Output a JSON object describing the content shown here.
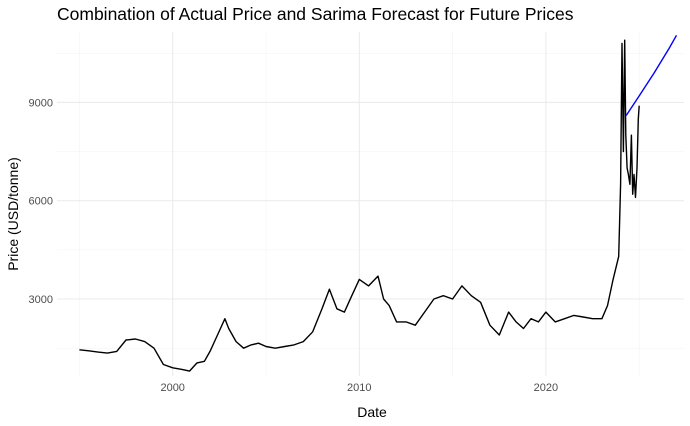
{
  "chart_data": {
    "type": "line",
    "title": "Combination of Actual Price and Sarima Forecast for Future Prices",
    "xlabel": "Date",
    "ylabel": "Price (USD/tonne)",
    "xlim": [
      1993.8,
      2027.4
    ],
    "ylim": [
      650,
      11150
    ],
    "x_ticks": [
      2000,
      2010,
      2020
    ],
    "x_tick_labels": [
      "2000",
      "2010",
      "2020"
    ],
    "y_ticks": [
      3000,
      6000,
      9000
    ],
    "y_tick_labels": [
      "3000",
      "6000",
      "9000"
    ],
    "grid": true,
    "legend": "none",
    "series": [
      {
        "color": "#000000",
        "x": [
          1995.0,
          1995.5,
          1996.0,
          1996.5,
          1997.0,
          1997.5,
          1998.0,
          1998.5,
          1999.0,
          1999.5,
          2000.0,
          2000.5,
          2000.9,
          2001.3,
          2001.7,
          2002.0,
          2002.4,
          2002.8,
          2003.0,
          2003.4,
          2003.8,
          2004.2,
          2004.6,
          2005.0,
          2005.5,
          2006.0,
          2006.5,
          2007.0,
          2007.5,
          2008.0,
          2008.4,
          2008.8,
          2009.2,
          2009.6,
          2010.0,
          2010.5,
          2011.0,
          2011.3,
          2011.6,
          2012.0,
          2012.5,
          2013.0,
          2013.5,
          2014.0,
          2014.5,
          2015.0,
          2015.5,
          2016.0,
          2016.5,
          2017.0,
          2017.5,
          2018.0,
          2018.4,
          2018.8,
          2019.2,
          2019.6,
          2020.0,
          2020.5,
          2021.0,
          2021.5,
          2022.0,
          2022.5,
          2023.0,
          2023.3,
          2023.6,
          2023.9,
          2024.0,
          2024.08,
          2024.15,
          2024.22,
          2024.28,
          2024.35,
          2024.42,
          2024.5,
          2024.58,
          2024.65,
          2024.72,
          2024.8,
          2024.88,
          2024.95,
          2025.0
        ],
        "y": [
          1450,
          1420,
          1380,
          1350,
          1400,
          1750,
          1780,
          1700,
          1500,
          1000,
          900,
          850,
          800,
          1050,
          1100,
          1400,
          1900,
          2400,
          2100,
          1700,
          1500,
          1600,
          1650,
          1550,
          1500,
          1550,
          1600,
          1700,
          2000,
          2700,
          3300,
          2700,
          2600,
          3100,
          3600,
          3400,
          3700,
          3000,
          2800,
          2300,
          2300,
          2200,
          2600,
          3000,
          3100,
          3000,
          3400,
          3100,
          2900,
          2200,
          1900,
          2600,
          2300,
          2100,
          2400,
          2300,
          2600,
          2300,
          2400,
          2500,
          2450,
          2400,
          2400,
          2800,
          3600,
          4300,
          6500,
          10800,
          7500,
          10900,
          8000,
          7000,
          6800,
          6500,
          8000,
          6200,
          6800,
          6100,
          7000,
          8500,
          8900
        ]
      },
      {
        "color": "#0000ff",
        "x": [
          2024.3,
          2025.0,
          2025.8,
          2026.6,
          2027.0
        ],
        "y": [
          8600,
          9200,
          9900,
          10650,
          11050
        ]
      }
    ]
  }
}
